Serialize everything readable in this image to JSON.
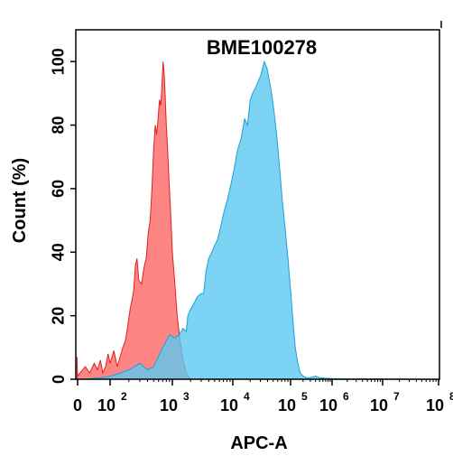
{
  "chart_data": {
    "type": "area",
    "title": "BME100278",
    "xlabel": "APC-A",
    "ylabel": "Count  (%)",
    "xscale": "biexponential",
    "ylim": [
      0,
      110
    ],
    "xticks": [
      {
        "value": 0,
        "base": "0",
        "exp": ""
      },
      {
        "value": 100,
        "base": "10",
        "exp": "2"
      },
      {
        "value": 1000,
        "base": "10",
        "exp": "3"
      },
      {
        "value": 10000,
        "base": "10",
        "exp": "4"
      },
      {
        "value": 100000,
        "base": "10",
        "exp": "5"
      },
      {
        "value": 1000000,
        "base": "10",
        "exp": "6"
      },
      {
        "value": 10000000,
        "base": "10",
        "exp": "7"
      },
      {
        "value": 100000000,
        "base": "10",
        "exp": "8"
      }
    ],
    "yticks": [
      0,
      20,
      40,
      60,
      80,
      100
    ],
    "grid": false,
    "series": [
      {
        "color": "#ff6666",
        "stroke": "#e02020",
        "points": [
          [
            -15,
            7
          ],
          [
            -8,
            3
          ],
          [
            0,
            1
          ],
          [
            8,
            4
          ],
          [
            15,
            2
          ],
          [
            25,
            5
          ],
          [
            35,
            3
          ],
          [
            45,
            6
          ],
          [
            55,
            2
          ],
          [
            70,
            4
          ],
          [
            85,
            8
          ],
          [
            100,
            5
          ],
          [
            115,
            9
          ],
          [
            130,
            4
          ],
          [
            145,
            7
          ],
          [
            160,
            10
          ],
          [
            175,
            12
          ],
          [
            190,
            16
          ],
          [
            210,
            22
          ],
          [
            225,
            25
          ],
          [
            240,
            28
          ],
          [
            255,
            36
          ],
          [
            270,
            38
          ],
          [
            290,
            31
          ],
          [
            320,
            30
          ],
          [
            350,
            35
          ],
          [
            380,
            38
          ],
          [
            410,
            46
          ],
          [
            440,
            50
          ],
          [
            470,
            60
          ],
          [
            500,
            72
          ],
          [
            530,
            80
          ],
          [
            560,
            77
          ],
          [
            590,
            82
          ],
          [
            620,
            88
          ],
          [
            650,
            86
          ],
          [
            680,
            92
          ],
          [
            710,
            100
          ],
          [
            740,
            96
          ],
          [
            770,
            88
          ],
          [
            800,
            80
          ],
          [
            840,
            72
          ],
          [
            880,
            63
          ],
          [
            920,
            56
          ],
          [
            960,
            48
          ],
          [
            1000,
            40
          ],
          [
            1100,
            30
          ],
          [
            1200,
            20
          ],
          [
            1350,
            12
          ],
          [
            1500,
            6
          ],
          [
            1700,
            2
          ],
          [
            1900,
            0.5
          ],
          [
            2100,
            0
          ]
        ]
      },
      {
        "color": "#5bc8f0",
        "stroke": "#1aa0d8",
        "points": [
          [
            5,
            0
          ],
          [
            50,
            0.5
          ],
          [
            100,
            1
          ],
          [
            150,
            2
          ],
          [
            200,
            3
          ],
          [
            250,
            4
          ],
          [
            300,
            5
          ],
          [
            400,
            3
          ],
          [
            500,
            4
          ],
          [
            700,
            10
          ],
          [
            900,
            14
          ],
          [
            1100,
            13
          ],
          [
            1300,
            14
          ],
          [
            1500,
            16
          ],
          [
            1700,
            15
          ],
          [
            1800,
            20
          ],
          [
            2000,
            22
          ],
          [
            2300,
            24
          ],
          [
            2600,
            26
          ],
          [
            3000,
            27
          ],
          [
            3300,
            27
          ],
          [
            3600,
            34
          ],
          [
            4000,
            38
          ],
          [
            4500,
            40
          ],
          [
            5000,
            42
          ],
          [
            5600,
            44
          ],
          [
            6300,
            48
          ],
          [
            7000,
            52
          ],
          [
            8000,
            56
          ],
          [
            9000,
            60
          ],
          [
            10500,
            66
          ],
          [
            12000,
            72
          ],
          [
            14000,
            76
          ],
          [
            16000,
            82
          ],
          [
            18000,
            80
          ],
          [
            20000,
            88
          ],
          [
            22000,
            90
          ],
          [
            25000,
            92
          ],
          [
            28000,
            94
          ],
          [
            31000,
            96
          ],
          [
            35000,
            100
          ],
          [
            39000,
            98
          ],
          [
            43000,
            94
          ],
          [
            47000,
            90
          ],
          [
            52000,
            84
          ],
          [
            58000,
            76
          ],
          [
            65000,
            66
          ],
          [
            72000,
            56
          ],
          [
            80000,
            48
          ],
          [
            90000,
            38
          ],
          [
            100000,
            28
          ],
          [
            115000,
            18
          ],
          [
            130000,
            10
          ],
          [
            150000,
            5
          ],
          [
            170000,
            2
          ],
          [
            200000,
            1
          ],
          [
            240000,
            0.5
          ],
          [
            300000,
            0.5
          ],
          [
            400000,
            1
          ],
          [
            500000,
            0.5
          ],
          [
            700000,
            0.3
          ],
          [
            1000000,
            0.2
          ],
          [
            3000000,
            0.1
          ],
          [
            10000000,
            0.1
          ],
          [
            100000000,
            0
          ]
        ]
      }
    ]
  }
}
